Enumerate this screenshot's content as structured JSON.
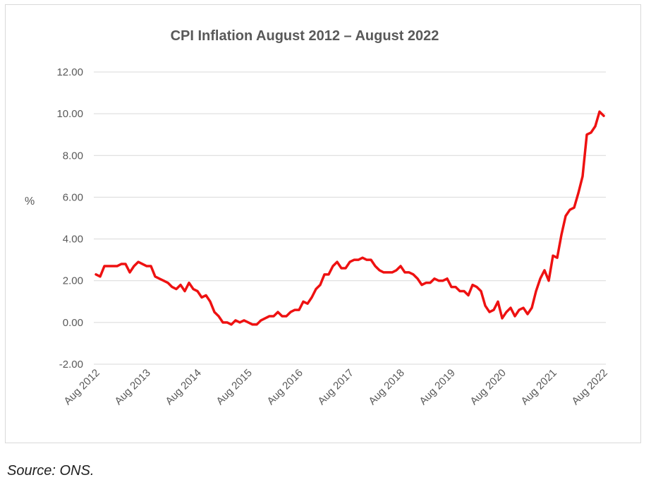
{
  "chart_data": {
    "type": "line",
    "title": "CPI Inflation August 2012 – August 2022",
    "xlabel": "",
    "ylabel": "%",
    "ylim": [
      -2,
      12
    ],
    "yticks": [
      -2,
      0,
      2,
      4,
      6,
      8,
      10,
      12
    ],
    "ytick_labels": [
      "-2.00",
      "0.00",
      "2.00",
      "4.00",
      "6.00",
      "8.00",
      "10.00",
      "12.00"
    ],
    "xtick_labels": [
      "Aug 2012",
      "Aug 2013",
      "Aug 2014",
      "Aug 2015",
      "Aug 2016",
      "Aug 2017",
      "Aug 2018",
      "Aug 2019",
      "Aug 2020",
      "Aug 2021",
      "Aug 2022"
    ],
    "grid": true,
    "legend": "none",
    "series": [
      {
        "color": "#ee1111",
        "values": [
          2.3,
          2.2,
          2.7,
          2.7,
          2.7,
          2.7,
          2.8,
          2.8,
          2.4,
          2.7,
          2.9,
          2.8,
          2.7,
          2.7,
          2.2,
          2.1,
          2.0,
          1.9,
          1.7,
          1.6,
          1.8,
          1.5,
          1.9,
          1.6,
          1.5,
          1.2,
          1.3,
          1.0,
          0.5,
          0.3,
          0.0,
          0.0,
          -0.1,
          0.1,
          0.0,
          0.1,
          0.0,
          -0.1,
          -0.1,
          0.1,
          0.2,
          0.3,
          0.3,
          0.5,
          0.3,
          0.3,
          0.5,
          0.6,
          0.6,
          1.0,
          0.9,
          1.2,
          1.6,
          1.8,
          2.3,
          2.3,
          2.7,
          2.9,
          2.6,
          2.6,
          2.9,
          3.0,
          3.0,
          3.1,
          3.0,
          3.0,
          2.7,
          2.5,
          2.4,
          2.4,
          2.4,
          2.5,
          2.7,
          2.4,
          2.4,
          2.3,
          2.1,
          1.8,
          1.9,
          1.9,
          2.1,
          2.0,
          2.0,
          2.1,
          1.7,
          1.7,
          1.5,
          1.5,
          1.3,
          1.8,
          1.7,
          1.5,
          0.8,
          0.5,
          0.6,
          1.0,
          0.2,
          0.5,
          0.7,
          0.3,
          0.6,
          0.7,
          0.4,
          0.7,
          1.5,
          2.1,
          2.5,
          2.0,
          3.2,
          3.1,
          4.2,
          5.1,
          5.4,
          5.5,
          6.2,
          7.0,
          9.0,
          9.1,
          9.4,
          10.1,
          9.9
        ]
      }
    ]
  },
  "footer": {
    "source": "Source: ONS."
  }
}
